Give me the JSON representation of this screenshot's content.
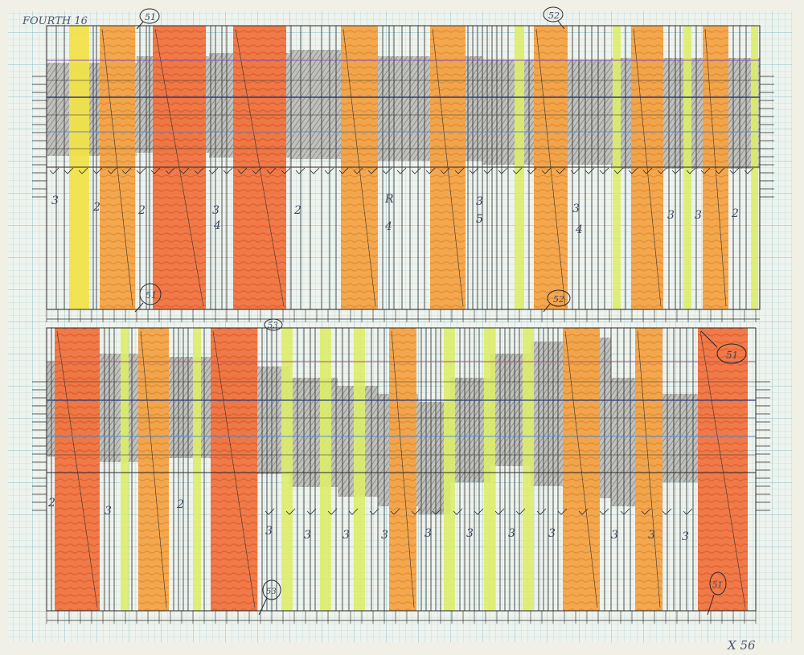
{
  "sheet": {
    "title": "FOURTH 16",
    "corner_mark": "X 56",
    "paper_color": "#eef3ee",
    "grid_color": "#9ec7cf",
    "ink_color": "#2a2a2a",
    "graphite_color": "#8d8d8d",
    "orange_color": "#ee9a3c",
    "red_orange_color": "#ee6a35",
    "yellow_color": "#f0e24a",
    "lime_color": "#dced6a"
  },
  "callouts": {
    "top_left": "51",
    "top_right": "52",
    "mid_left": "51",
    "mid_right": "52",
    "lower_tag": "53",
    "lower_mark": "53",
    "lower_right_top": "51",
    "lower_right_bottom": "51"
  },
  "top_panel": {
    "digits": [
      "3",
      "2",
      "2",
      "3",
      "4",
      "2",
      "R",
      "4",
      "3",
      "5",
      "3",
      "4",
      "3",
      "3",
      "2"
    ]
  },
  "bottom_panel": {
    "digits": [
      "2",
      "3",
      "2",
      "3",
      "3",
      "3",
      "3",
      "3",
      "3",
      "3",
      "3",
      "3",
      "3",
      "3"
    ]
  }
}
